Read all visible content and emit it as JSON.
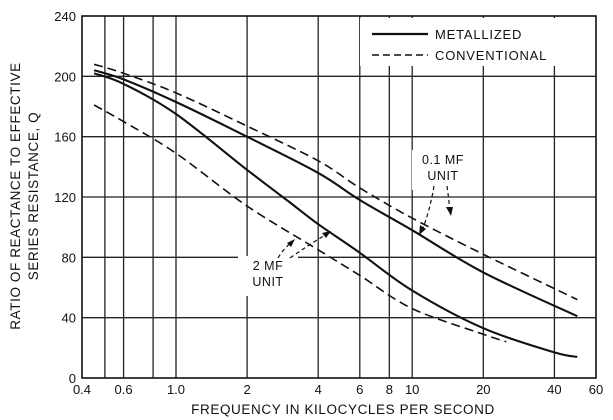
{
  "chart_data": {
    "type": "line",
    "xlabel": "FREQUENCY IN KILOCYCLES PER SECOND",
    "ylabel_lines": [
      "RATIO OF REACTANCE TO EFFECTIVE",
      "SERIES RESISTANCE, Q"
    ],
    "x_scale": "log",
    "xlim": [
      0.4,
      60
    ],
    "ylim": [
      0,
      240
    ],
    "x_ticks": [
      {
        "value": 0.4,
        "label": "0.4"
      },
      {
        "value": 0.6,
        "label": "0.6"
      },
      {
        "value": 1.0,
        "label": "1.0"
      },
      {
        "value": 2,
        "label": "2"
      },
      {
        "value": 4,
        "label": "4"
      },
      {
        "value": 6,
        "label": "6"
      },
      {
        "value": 8,
        "label": "8"
      },
      {
        "value": 10,
        "label": "10"
      },
      {
        "value": 20,
        "label": "20"
      },
      {
        "value": 40,
        "label": "40"
      },
      {
        "value": 60,
        "label": "60"
      }
    ],
    "x_gridlines": [
      0.5,
      0.6,
      0.8,
      1,
      2,
      4,
      6,
      8,
      10,
      20,
      40
    ],
    "y_ticks": [
      0,
      40,
      80,
      120,
      160,
      200,
      240
    ],
    "legend": {
      "position": "top-right",
      "entries": [
        {
          "label": "METALLIZED",
          "style": "solid"
        },
        {
          "label": "CONVENTIONAL",
          "style": "dashed"
        }
      ]
    },
    "series": [
      {
        "unit": "0.1 MF",
        "style": "solid",
        "x": [
          0.45,
          0.6,
          1,
          2,
          4,
          6,
          10,
          20,
          50
        ],
        "y": [
          204,
          198,
          183,
          160,
          136,
          118,
          98,
          70,
          41
        ]
      },
      {
        "unit": "0.1 MF",
        "style": "dashed",
        "x": [
          0.45,
          0.6,
          1,
          2,
          4,
          6,
          10,
          20,
          50
        ],
        "y": [
          208,
          202,
          189,
          167,
          144,
          126,
          106,
          82,
          52
        ]
      },
      {
        "unit": "2 MF",
        "style": "solid",
        "x": [
          0.45,
          0.6,
          1,
          2,
          3,
          4,
          6,
          10,
          20,
          40,
          50
        ],
        "y": [
          202,
          195,
          175,
          138,
          117,
          102,
          83,
          58,
          33,
          17,
          14
        ]
      },
      {
        "unit": "2 MF",
        "style": "dashed",
        "x": [
          0.45,
          0.6,
          1,
          2,
          4,
          6,
          10,
          20,
          25
        ],
        "y": [
          181,
          170,
          149,
          114,
          85,
          68,
          46,
          29,
          24
        ]
      }
    ],
    "annotations": [
      {
        "lines": [
          "0.1 MF",
          "UNIT"
        ]
      },
      {
        "lines": [
          "2 MF",
          "UNIT"
        ]
      }
    ]
  }
}
